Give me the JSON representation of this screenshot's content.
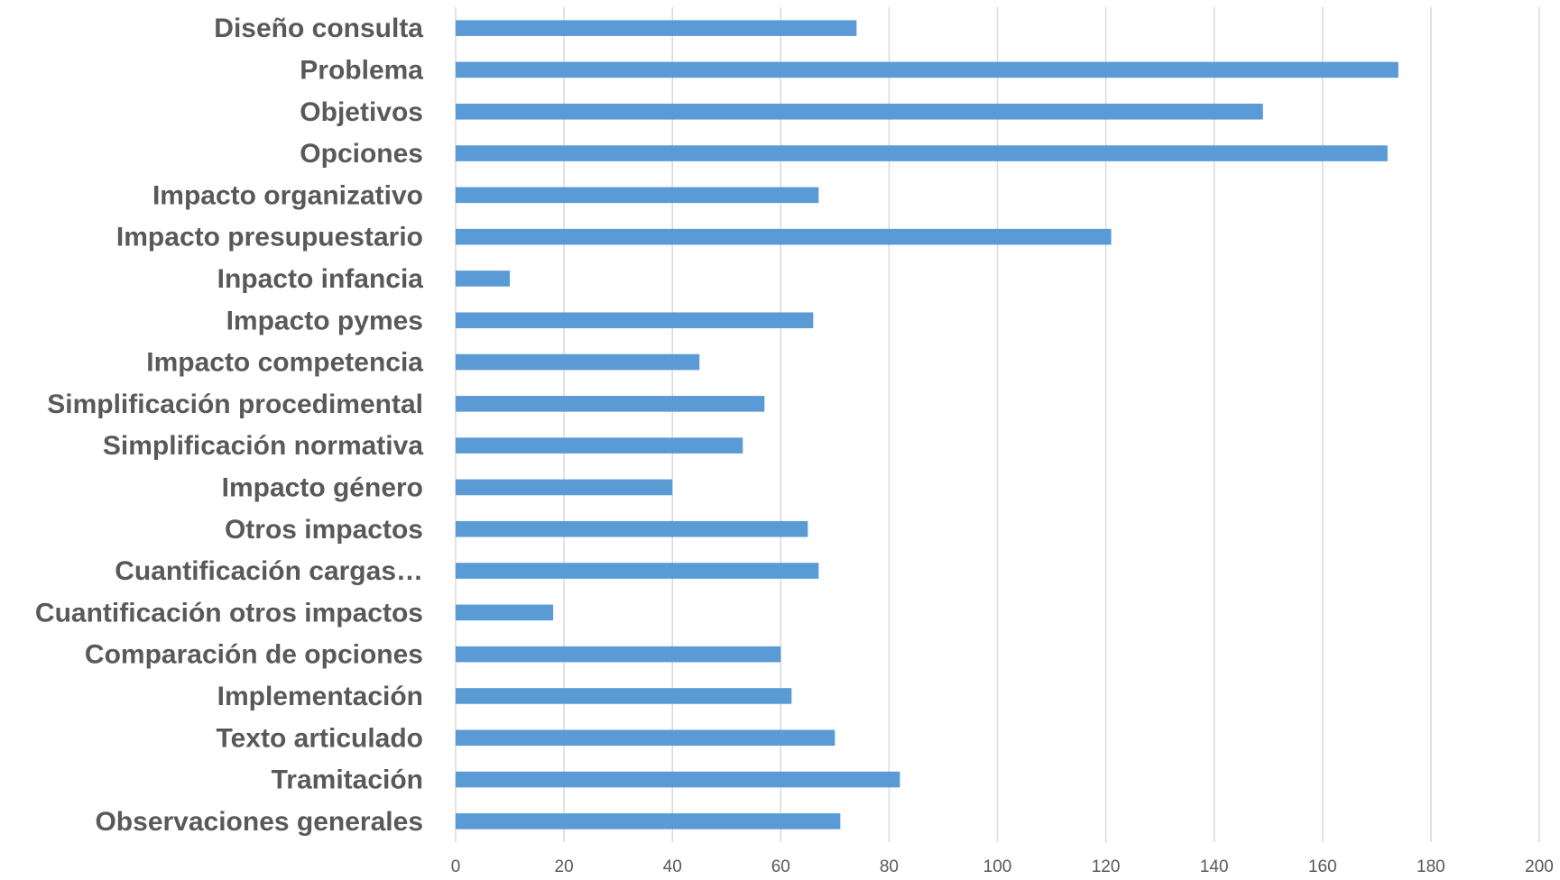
{
  "chart_data": {
    "type": "bar",
    "orientation": "horizontal",
    "title": "",
    "xlabel": "",
    "ylabel": "",
    "categories": [
      "Diseño consulta",
      "Problema",
      "Objetivos",
      "Opciones",
      "Impacto organizativo",
      "Impacto presupuestario",
      "Inpacto infancia",
      "Impacto pymes",
      "Impacto competencia",
      "Simplificación procedimental",
      "Simplificación normativa",
      "Impacto género",
      "Otros impactos",
      "Cuantificación cargas…",
      "Cuantificación otros impactos",
      "Comparación de opciones",
      "Implementación",
      "Texto articulado",
      "Tramitación",
      "Observaciones generales"
    ],
    "values": [
      74,
      174,
      149,
      172,
      67,
      121,
      10,
      66,
      45,
      57,
      53,
      40,
      65,
      67,
      18,
      60,
      62,
      70,
      82,
      71
    ],
    "xlim": [
      0,
      200
    ],
    "xticks": [
      0,
      20,
      40,
      60,
      80,
      100,
      120,
      140,
      160,
      180,
      200
    ],
    "grid": "vertical",
    "legend": "none",
    "bar_color": "#5b9bd5",
    "grid_color": "#d9d9d9",
    "label_color": "#595959"
  }
}
